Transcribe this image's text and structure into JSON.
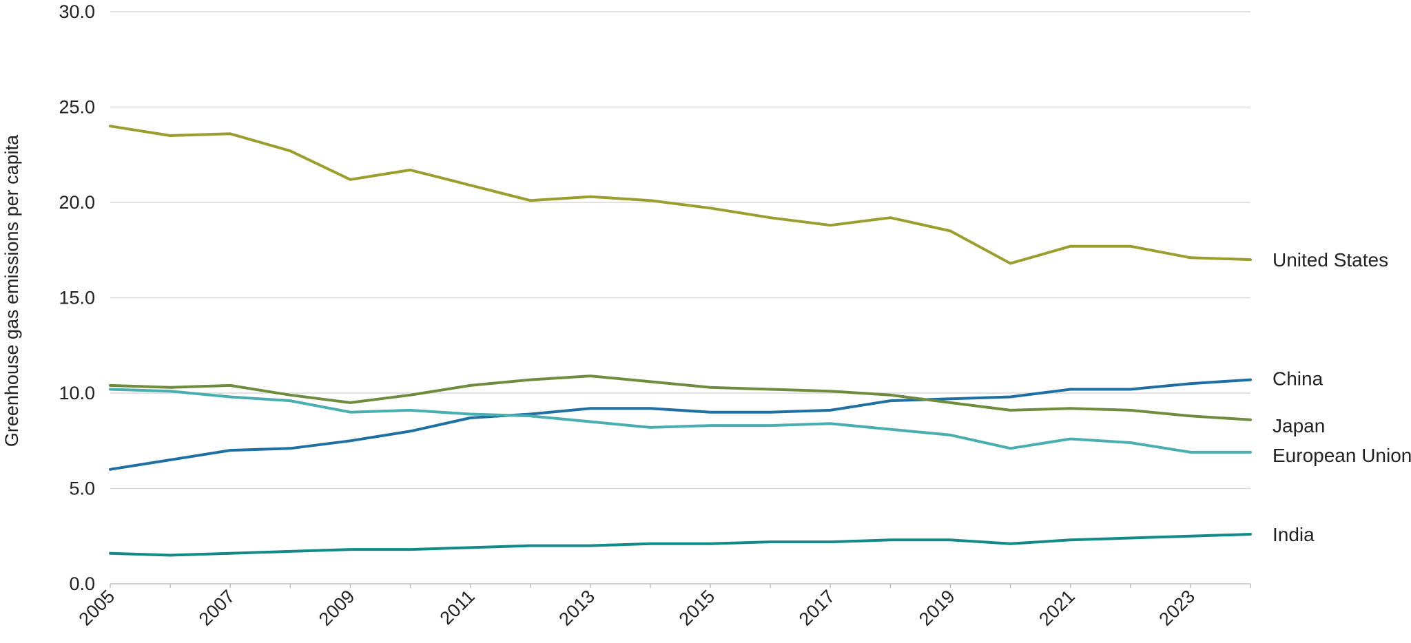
{
  "chart_data": {
    "type": "line",
    "title": "",
    "xlabel": "",
    "ylabel": "Greenhouse gas emissions per capita",
    "ylim": [
      0,
      30
    ],
    "xlim": [
      2005,
      2024
    ],
    "grid": true,
    "legend": "inline-right",
    "y_ticks": [
      "0.0",
      "5.0",
      "10.0",
      "15.0",
      "20.0",
      "25.0",
      "30.0"
    ],
    "x_ticks": [
      "2005",
      "2007",
      "2009",
      "2011",
      "2013",
      "2015",
      "2017",
      "2019",
      "2021",
      "2023"
    ],
    "x": [
      2005,
      2006,
      2007,
      2008,
      2009,
      2010,
      2011,
      2012,
      2013,
      2014,
      2015,
      2016,
      2017,
      2018,
      2019,
      2020,
      2021,
      2022,
      2023,
      2024
    ],
    "series": [
      {
        "name": "United States",
        "color": "#9a9e2f",
        "values": [
          24.0,
          23.5,
          23.6,
          22.7,
          21.2,
          21.7,
          20.9,
          20.1,
          20.3,
          20.1,
          19.7,
          19.2,
          18.8,
          19.2,
          18.5,
          16.8,
          17.7,
          17.7,
          17.1,
          17.0
        ]
      },
      {
        "name": "China",
        "color": "#1f6fa3",
        "values": [
          6.0,
          6.5,
          7.0,
          7.1,
          7.5,
          8.0,
          8.7,
          8.9,
          9.2,
          9.2,
          9.0,
          9.0,
          9.1,
          9.6,
          9.7,
          9.8,
          10.2,
          10.2,
          10.5,
          10.7
        ]
      },
      {
        "name": "Japan",
        "color": "#6e8c3d",
        "values": [
          10.4,
          10.3,
          10.4,
          9.9,
          9.5,
          9.9,
          10.4,
          10.7,
          10.9,
          10.6,
          10.3,
          10.2,
          10.1,
          9.9,
          9.5,
          9.1,
          9.2,
          9.1,
          8.8,
          8.6
        ]
      },
      {
        "name": "European Union",
        "color": "#4aaeb0",
        "values": [
          10.2,
          10.1,
          9.8,
          9.6,
          9.0,
          9.1,
          8.9,
          8.8,
          8.5,
          8.2,
          8.3,
          8.3,
          8.4,
          8.1,
          7.8,
          7.1,
          7.6,
          7.4,
          6.9,
          6.9
        ]
      },
      {
        "name": "India",
        "color": "#138a87",
        "values": [
          1.6,
          1.5,
          1.6,
          1.7,
          1.8,
          1.8,
          1.9,
          2.0,
          2.0,
          2.1,
          2.1,
          2.2,
          2.2,
          2.3,
          2.3,
          2.1,
          2.3,
          2.4,
          2.5,
          2.6
        ]
      }
    ]
  }
}
